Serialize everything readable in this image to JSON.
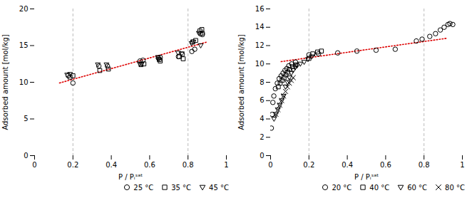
{
  "chart_data": [
    {
      "type": "scatter",
      "xlabel": "P / Pᵢˢᵃᵗ",
      "ylabel": "Adsorbed amount [mol/kg]",
      "xlim": [
        0,
        1
      ],
      "ylim": [
        0,
        20
      ],
      "xticks": [
        0,
        0.2,
        0.4,
        0.6,
        0.8,
        1
      ],
      "yticks": [
        0,
        5,
        10,
        15,
        20
      ],
      "legend": "lower right",
      "series": [
        {
          "name": "25 °C",
          "marker": "circle",
          "color": "#000000",
          "x": [
            0.175,
            0.2,
            0.335,
            0.38,
            0.55,
            0.565,
            0.645,
            0.655,
            0.75,
            0.77,
            0.82,
            0.835,
            0.865,
            0.875,
            0.875
          ],
          "values": [
            10.9,
            9.9,
            12.2,
            12.2,
            12.9,
            13.0,
            13.3,
            13.4,
            13.5,
            13.8,
            14.2,
            14.5,
            16.6,
            16.7,
            16.5
          ]
        },
        {
          "name": "35 °C",
          "marker": "square",
          "color": "#000000",
          "x": [
            0.185,
            0.2,
            0.34,
            0.385,
            0.555,
            0.57,
            0.65,
            0.655,
            0.755,
            0.775,
            0.825,
            0.84,
            0.862,
            0.872
          ],
          "values": [
            10.7,
            10.9,
            11.6,
            11.8,
            12.4,
            12.5,
            13.1,
            12.9,
            13.5,
            13.2,
            15.5,
            15.7,
            17.0,
            17.2
          ]
        },
        {
          "name": "45 °C",
          "marker": "triangle-down",
          "color": "#000000",
          "x": [
            0.17,
            0.185,
            0.33,
            0.375,
            0.548,
            0.558,
            0.643,
            0.647,
            0.748,
            0.768,
            0.818,
            0.828,
            0.856,
            0.866
          ],
          "values": [
            11.0,
            11.1,
            12.4,
            12.4,
            12.5,
            12.5,
            13.4,
            13.1,
            14.0,
            13.9,
            15.3,
            15.5,
            16.7,
            15.0
          ]
        },
        {
          "type": "line",
          "color": "#dd0000",
          "line_style": "dotted",
          "x": [
            0.13,
            0.9
          ],
          "values": [
            9.9,
            15.5
          ]
        },
        {
          "type": "rule",
          "color": "#bbbbbb",
          "line_style": "dashed",
          "x": [
            0.2,
            0.8
          ]
        }
      ]
    },
    {
      "type": "scatter",
      "xlabel": "P / Pᵢˢᵃᵗ",
      "ylabel": "Adsorbed amount [mol/kg]",
      "xlim": [
        0,
        1
      ],
      "ylim": [
        0,
        16
      ],
      "xticks": [
        0,
        0.2,
        0.4,
        0.6,
        0.8,
        1
      ],
      "yticks": [
        0,
        2,
        4,
        6,
        8,
        10,
        12,
        14,
        16
      ],
      "legend": "lower right",
      "series": [
        {
          "name": "20 °C",
          "marker": "circle",
          "color": "#000000",
          "x": [
            0.004,
            0.008,
            0.012,
            0.017,
            0.025,
            0.035,
            0.045,
            0.055,
            0.065,
            0.075,
            0.085,
            0.095,
            0.11,
            0.13,
            0.2,
            0.25,
            0.35,
            0.45,
            0.55,
            0.65,
            0.76,
            0.79,
            0.83,
            0.86,
            0.885,
            0.905,
            0.925,
            0.935,
            0.95
          ],
          "values": [
            3.0,
            4.5,
            5.8,
            6.5,
            7.3,
            7.9,
            8.4,
            8.7,
            9.0,
            9.3,
            9.5,
            9.8,
            10.0,
            10.2,
            11.0,
            11.1,
            11.2,
            11.4,
            11.5,
            11.6,
            12.5,
            12.7,
            13.0,
            13.3,
            13.7,
            14.0,
            14.3,
            14.4,
            14.3
          ]
        },
        {
          "name": "40 °C",
          "marker": "square",
          "color": "#000000",
          "x": [
            0.04,
            0.05,
            0.06,
            0.07,
            0.08,
            0.09,
            0.1,
            0.115,
            0.13,
            0.2,
            0.22,
            0.245,
            0.265
          ],
          "values": [
            7.5,
            7.9,
            8.2,
            8.5,
            8.8,
            9.1,
            9.4,
            9.7,
            9.9,
            10.6,
            11.1,
            11.3,
            11.4
          ]
        },
        {
          "name": "60 °C",
          "marker": "triangle-down",
          "color": "#000000",
          "x": [
            0.018,
            0.028,
            0.038,
            0.048,
            0.058,
            0.068,
            0.078,
            0.088,
            0.098,
            0.108,
            0.118,
            0.128,
            0.138,
            0.155,
            0.175,
            0.195,
            0.215
          ],
          "values": [
            4.0,
            4.5,
            5.0,
            5.5,
            6.0,
            6.5,
            7.5,
            8.0,
            8.5,
            9.0,
            9.3,
            9.6,
            9.8,
            10.0,
            10.2,
            10.5,
            10.8
          ]
        },
        {
          "name": "80 °C",
          "marker": "x",
          "color": "#000000",
          "x": [
            0.028,
            0.038,
            0.048,
            0.058,
            0.068,
            0.078,
            0.088,
            0.098,
            0.108,
            0.118
          ],
          "values": [
            4.5,
            5.0,
            5.5,
            6.0,
            6.5,
            7.0,
            7.5,
            7.9,
            8.2,
            8.5
          ]
        },
        {
          "type": "line",
          "color": "#dd0000",
          "line_style": "dotted",
          "x": [
            0.055,
            0.92
          ],
          "values": [
            10.25,
            12.8
          ]
        },
        {
          "type": "rule",
          "color": "#bbbbbb",
          "line_style": "dashed",
          "x": [
            0.2,
            0.8
          ]
        }
      ]
    }
  ]
}
